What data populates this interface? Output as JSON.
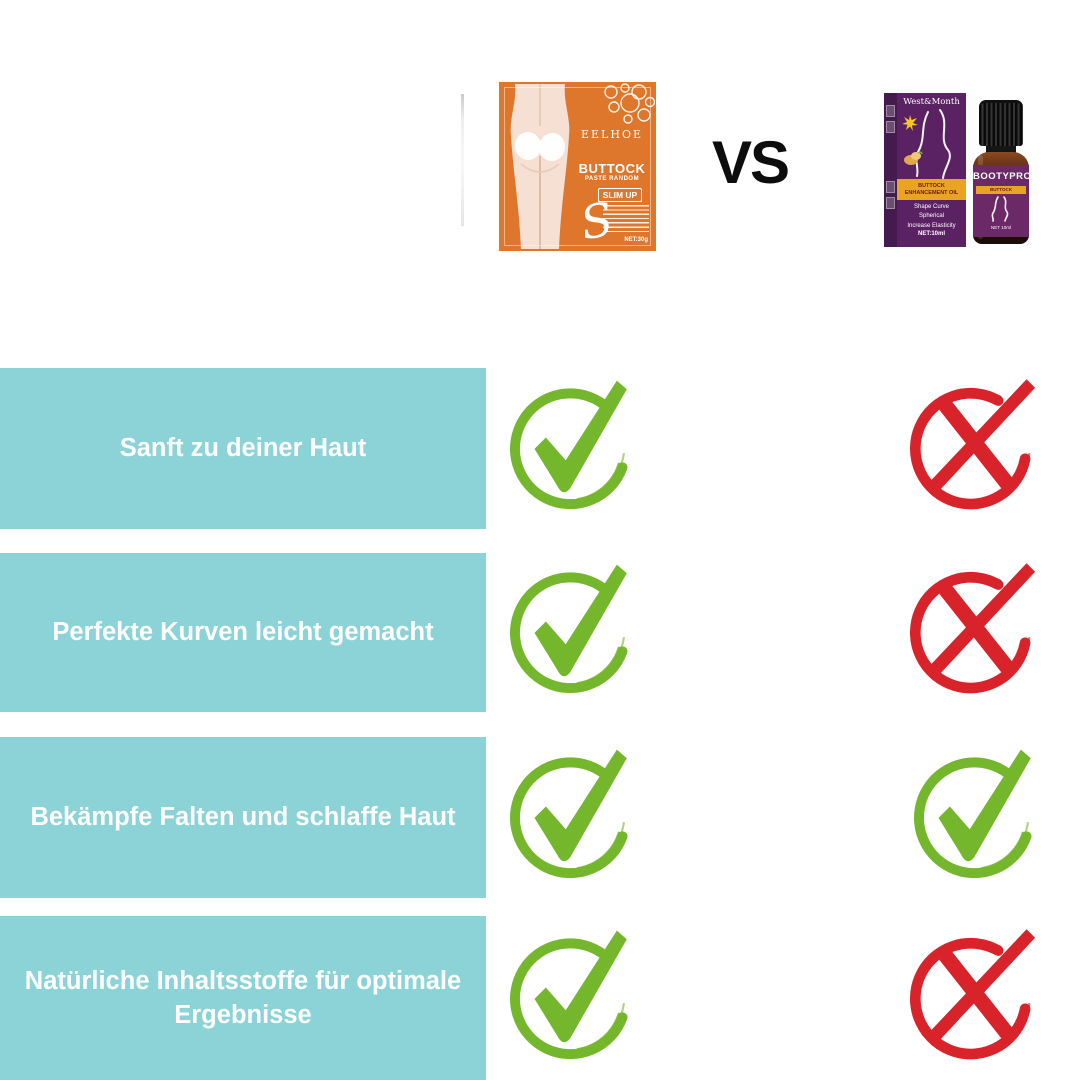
{
  "header": {
    "vs_label": "VS",
    "product_a": {
      "brand": "EELHOE",
      "title": "BUTTOCK",
      "subtitle": "PASTE RANDOM",
      "badge": "SLIM UP",
      "swoosh": "S",
      "net": "NET:30g",
      "colors": {
        "package": "#DE772B"
      }
    },
    "product_b": {
      "box_brand": "West&Month",
      "box_band": "BUTTOCK ENHANCEMENT OIL",
      "box_lines": [
        "Shape Curve",
        "Spherical",
        "Increase Elasticity"
      ],
      "box_net": "NET:10ml",
      "bottle_brand": "BOOTYPRO",
      "bottle_band": "BUTTOCK ENHANCEMENT OIL",
      "bottle_net": "NET 10ml",
      "colors": {
        "box": "#5A2262",
        "panel": "#431B4E",
        "label": "#6C2968",
        "band": "#E9A422"
      }
    }
  },
  "comparison": {
    "bar_color": "#8BD3D6",
    "check_color": "#74B72C",
    "cross_color": "#D9232B",
    "rows": [
      {
        "label": "Sanft zu deiner Haut",
        "product_a": "check",
        "product_b": "cross"
      },
      {
        "label": "Perfekte Kurven leicht gemacht",
        "product_a": "check",
        "product_b": "cross"
      },
      {
        "label": "Bekämpfe Falten und schlaffe Haut",
        "product_a": "check",
        "product_b": "check"
      },
      {
        "label": "Natürliche Inhaltsstoffe für optimale\nErgebnisse",
        "product_a": "check",
        "product_b": "cross"
      }
    ]
  }
}
